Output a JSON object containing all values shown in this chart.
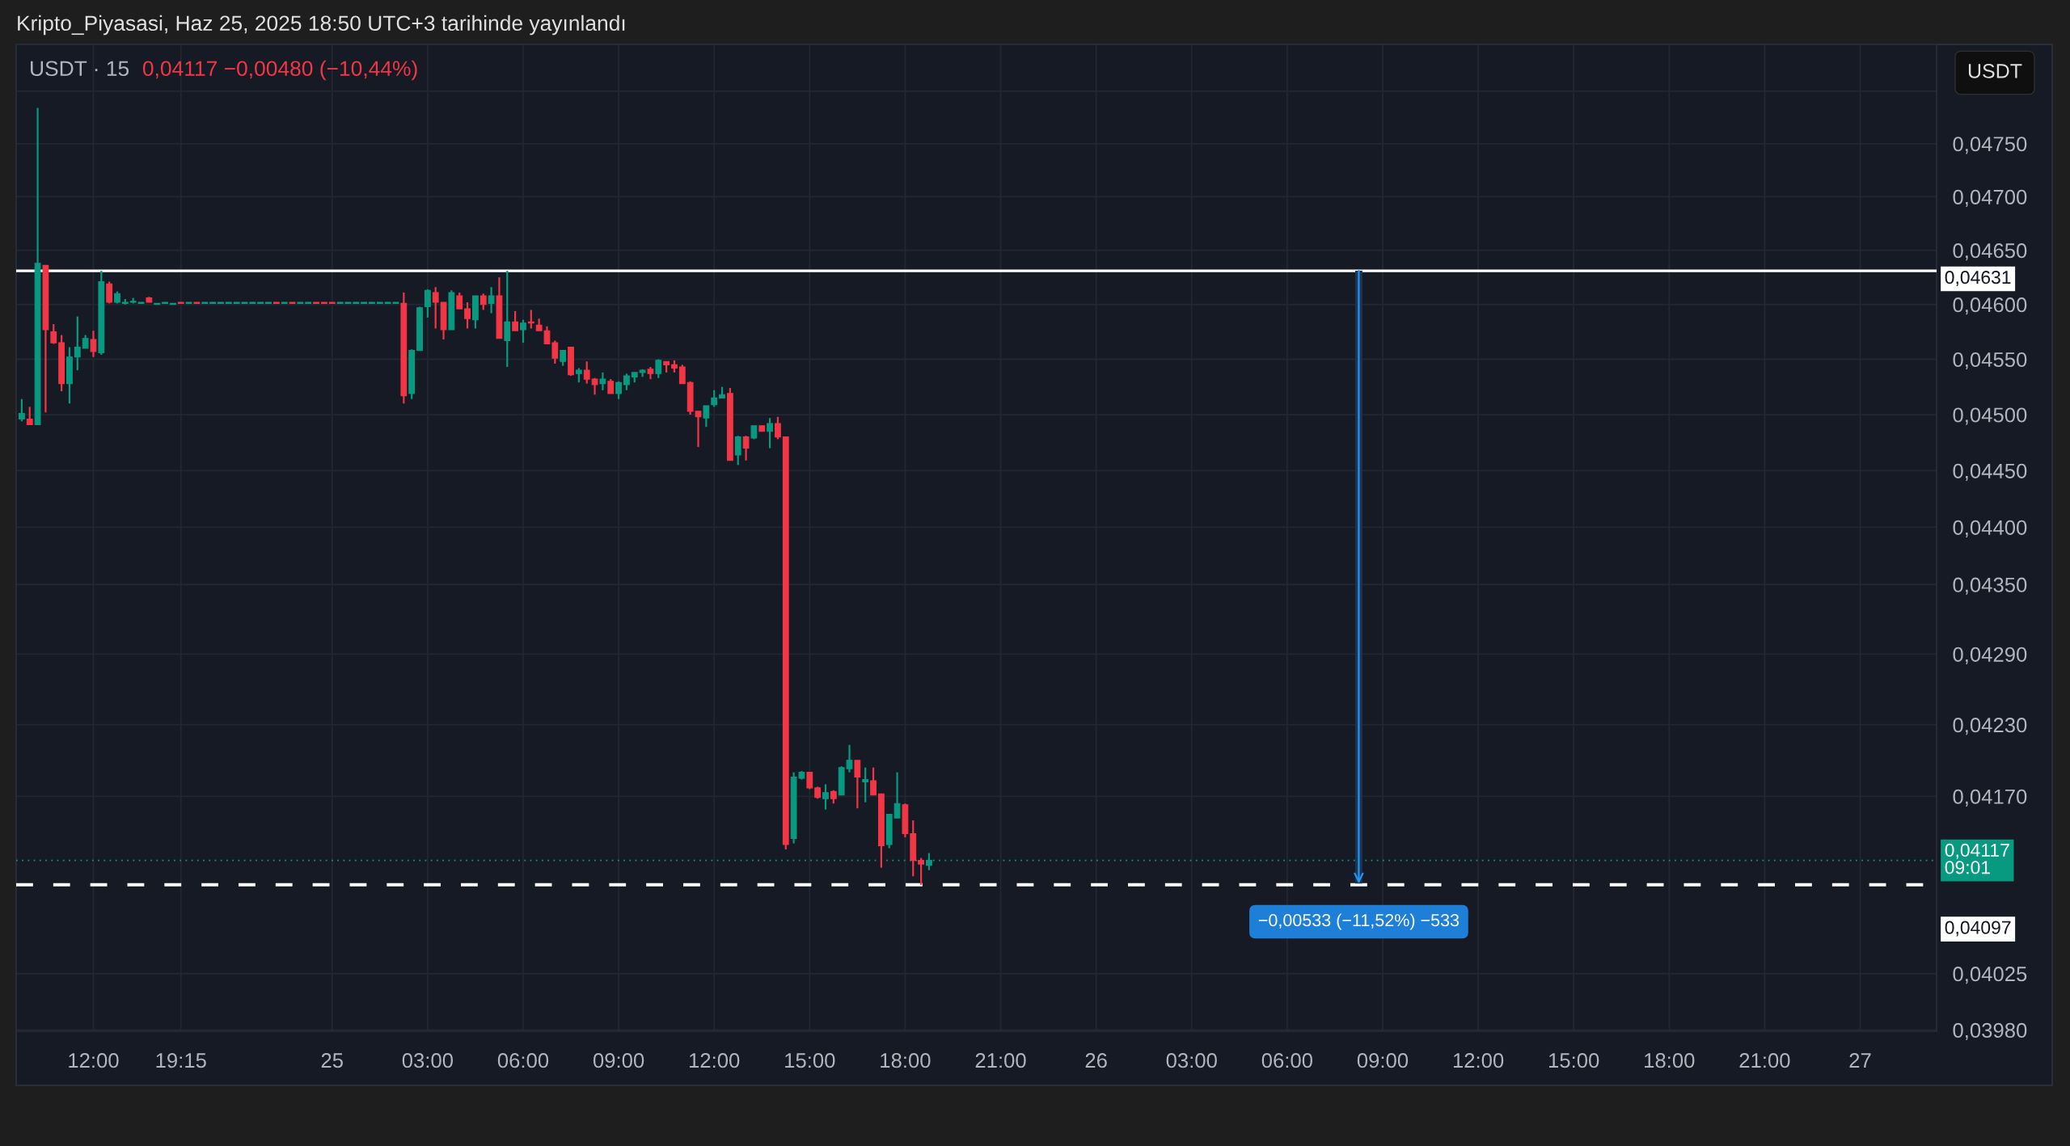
{
  "chart_data": {
    "type": "candlestick",
    "title": "Kripto_Piyasasi, Haz 25, 2025 18:50 UTC+3 tarihinde yayınlandı",
    "subtitle": "USDT · 15",
    "annotations": [
      "0,04117 −0,00480 (−10,44%)",
      "USDT"
    ],
    "categories": [
      null,
      null,
      null,
      null,
      null,
      null,
      null,
      null,
      null,
      "12:00",
      null,
      null,
      null,
      null,
      null,
      null,
      null,
      null,
      null,
      null,
      "19:15",
      null,
      null,
      null,
      null,
      null,
      null,
      null,
      null,
      null,
      null,
      null,
      null,
      null,
      null,
      null,
      null,
      null,
      null,
      "25",
      null,
      null,
      null,
      null,
      null,
      null,
      null,
      null,
      null,
      null,
      null,
      "03:00",
      null,
      null,
      null,
      null,
      null,
      null,
      null,
      null,
      null,
      null,
      null,
      "06:00",
      null,
      null,
      null,
      null,
      null,
      null,
      null,
      null,
      null,
      null,
      null,
      "09:00",
      null,
      null,
      null,
      null,
      null,
      null,
      null,
      null,
      null,
      null,
      null,
      "12:00",
      null,
      null,
      null,
      null,
      null,
      null,
      null,
      null,
      null,
      null,
      null,
      "15:00",
      null,
      null,
      null,
      null,
      null,
      null,
      null,
      null,
      null,
      null,
      null,
      "18:00",
      null,
      null,
      null,
      null,
      null,
      null,
      null,
      null,
      null,
      null,
      null,
      "21:00",
      null,
      null,
      null,
      null,
      null,
      null,
      null,
      null,
      null,
      null,
      null,
      "26",
      null,
      null,
      null,
      null,
      null,
      null,
      null,
      null,
      null,
      null,
      null,
      "03:00",
      null,
      null,
      null,
      null,
      null,
      null,
      null,
      null,
      null,
      null,
      null,
      "06:00",
      null,
      null,
      null,
      null,
      null,
      null,
      null,
      null,
      null,
      null,
      null,
      "09:00",
      null,
      null,
      null,
      null,
      null,
      null,
      null,
      null,
      null,
      null,
      null,
      "12:00",
      null,
      null,
      null,
      null,
      null,
      null,
      null,
      null,
      null,
      null,
      null,
      "15:00",
      null,
      null,
      null,
      null,
      null,
      null,
      null,
      null,
      null,
      null,
      null,
      "18:00",
      null,
      null,
      null,
      null,
      null,
      null,
      null,
      null,
      null,
      null,
      null,
      "21:00",
      null,
      null,
      null,
      null,
      null,
      null,
      null,
      null,
      null,
      null,
      null,
      "27",
      null,
      null,
      null,
      null,
      null,
      null,
      null,
      null,
      null
    ],
    "ohlc": [
      [
        0.04496,
        0.04514,
        0.04494,
        0.04501
      ],
      [
        0.04496,
        0.04507,
        0.04491,
        0.04491
      ],
      [
        0.04491,
        0.04784,
        0.04491,
        0.04638
      ],
      [
        0.04636,
        0.04636,
        0.04502,
        0.04577
      ],
      [
        0.04575,
        0.04582,
        0.04564,
        0.04565
      ],
      [
        0.04565,
        0.04572,
        0.04521,
        0.04528
      ],
      [
        0.04528,
        0.04561,
        0.0451,
        0.04552
      ],
      [
        0.04552,
        0.04589,
        0.0454,
        0.04561
      ],
      [
        0.0456,
        0.04572,
        0.0456,
        0.04569
      ],
      [
        0.04568,
        0.04576,
        0.04552,
        0.04557
      ],
      [
        0.04556,
        0.04631,
        0.04554,
        0.04621
      ],
      [
        0.04619,
        0.04621,
        0.04601,
        0.04602
      ],
      [
        0.04602,
        0.04612,
        0.04601,
        0.0461
      ],
      [
        0.04601,
        0.04605,
        0.046,
        0.04602
      ],
      [
        0.04602,
        0.04606,
        0.04601,
        0.04603
      ],
      [
        0.04601,
        0.04602,
        0.04601,
        0.04602
      ],
      [
        0.04606,
        0.04607,
        0.04602,
        0.04602
      ],
      [
        0.046,
        0.04601,
        0.046,
        0.04601
      ],
      [
        0.04601,
        0.04602,
        0.04601,
        0.04602
      ],
      [
        0.046,
        0.04601,
        0.046,
        0.04601
      ],
      [
        0.04602,
        0.04602,
        0.04601,
        0.04601
      ],
      [
        0.04601,
        0.04602,
        0.04601,
        0.04602
      ],
      [
        0.04602,
        0.04602,
        0.04601,
        0.04601
      ],
      [
        0.04601,
        0.04602,
        0.04601,
        0.04602
      ],
      [
        0.04601,
        0.04602,
        0.04601,
        0.04602
      ],
      [
        0.04601,
        0.04602,
        0.04601,
        0.04602
      ],
      [
        0.04601,
        0.04602,
        0.04601,
        0.04602
      ],
      [
        0.04601,
        0.04602,
        0.04601,
        0.04602
      ],
      [
        0.04601,
        0.04602,
        0.04601,
        0.04602
      ],
      [
        0.04601,
        0.04602,
        0.04601,
        0.04602
      ],
      [
        0.04601,
        0.04602,
        0.04601,
        0.04602
      ],
      [
        0.04601,
        0.04602,
        0.04601,
        0.04602
      ],
      [
        0.04602,
        0.04602,
        0.04601,
        0.04601
      ],
      [
        0.04601,
        0.04602,
        0.04601,
        0.04602
      ],
      [
        0.04602,
        0.04602,
        0.04601,
        0.04601
      ],
      [
        0.04601,
        0.04602,
        0.04601,
        0.04602
      ],
      [
        0.04601,
        0.04602,
        0.04601,
        0.04602
      ],
      [
        0.04602,
        0.04602,
        0.04601,
        0.04601
      ],
      [
        0.04602,
        0.04602,
        0.04601,
        0.04601
      ],
      [
        0.04602,
        0.04602,
        0.04601,
        0.04601
      ],
      [
        0.04601,
        0.04602,
        0.04601,
        0.04602
      ],
      [
        0.04601,
        0.04602,
        0.04601,
        0.04602
      ],
      [
        0.04601,
        0.04602,
        0.04601,
        0.04602
      ],
      [
        0.04601,
        0.04602,
        0.04601,
        0.04602
      ],
      [
        0.04601,
        0.04602,
        0.04601,
        0.04602
      ],
      [
        0.04601,
        0.04602,
        0.04601,
        0.04602
      ],
      [
        0.04601,
        0.04602,
        0.04601,
        0.04602
      ],
      [
        0.04601,
        0.04602,
        0.04601,
        0.04602
      ],
      [
        0.04601,
        0.04611,
        0.0451,
        0.04517
      ],
      [
        0.04519,
        0.04559,
        0.04514,
        0.04558
      ],
      [
        0.04558,
        0.04598,
        0.04558,
        0.04597
      ],
      [
        0.04598,
        0.04614,
        0.04588,
        0.04613
      ],
      [
        0.04611,
        0.04616,
        0.04578,
        0.04602
      ],
      [
        0.04602,
        0.04602,
        0.04568,
        0.04577
      ],
      [
        0.04577,
        0.04613,
        0.04577,
        0.04611
      ],
      [
        0.04608,
        0.04611,
        0.04596,
        0.04596
      ],
      [
        0.04596,
        0.04602,
        0.04578,
        0.04587
      ],
      [
        0.04586,
        0.04608,
        0.04578,
        0.04608
      ],
      [
        0.04608,
        0.0461,
        0.04595,
        0.046
      ],
      [
        0.04601,
        0.04616,
        0.04592,
        0.04608
      ],
      [
        0.04608,
        0.04625,
        0.04569,
        0.04569
      ],
      [
        0.04567,
        0.04631,
        0.04543,
        0.04584
      ],
      [
        0.04584,
        0.04594,
        0.04576,
        0.04576
      ],
      [
        0.04577,
        0.04586,
        0.04565,
        0.04583
      ],
      [
        0.04584,
        0.04595,
        0.04578,
        0.04583
      ],
      [
        0.04581,
        0.04587,
        0.04576,
        0.04576
      ],
      [
        0.04576,
        0.0458,
        0.04564,
        0.04564
      ],
      [
        0.04565,
        0.04567,
        0.04546,
        0.04551
      ],
      [
        0.04548,
        0.04558,
        0.04544,
        0.04558
      ],
      [
        0.04561,
        0.04561,
        0.04535,
        0.04536
      ],
      [
        0.04537,
        0.04542,
        0.04529,
        0.0454
      ],
      [
        0.0454,
        0.04548,
        0.04528,
        0.04532
      ],
      [
        0.04532,
        0.04533,
        0.04518,
        0.04527
      ],
      [
        0.04528,
        0.04538,
        0.04522,
        0.04532
      ],
      [
        0.0453,
        0.04532,
        0.04519,
        0.04519
      ],
      [
        0.04519,
        0.0453,
        0.04514,
        0.04529
      ],
      [
        0.04527,
        0.04537,
        0.04522,
        0.04535
      ],
      [
        0.04534,
        0.04538,
        0.04529,
        0.04538
      ],
      [
        0.04538,
        0.04541,
        0.04534,
        0.0454
      ],
      [
        0.04541,
        0.04543,
        0.04532,
        0.04537
      ],
      [
        0.04537,
        0.0455,
        0.04533,
        0.04549
      ],
      [
        0.04548,
        0.04548,
        0.04538,
        0.04545
      ],
      [
        0.04545,
        0.04549,
        0.04538,
        0.04542
      ],
      [
        0.04543,
        0.04545,
        0.04528,
        0.04528
      ],
      [
        0.04529,
        0.0453,
        0.045,
        0.04503
      ],
      [
        0.04503,
        0.04503,
        0.04471,
        0.04498
      ],
      [
        0.04497,
        0.04508,
        0.04489,
        0.04508
      ],
      [
        0.04509,
        0.04522,
        0.04507,
        0.04515
      ],
      [
        0.04515,
        0.04525,
        0.04515,
        0.04518
      ],
      [
        0.04519,
        0.04524,
        0.04459,
        0.04459
      ],
      [
        0.04464,
        0.04481,
        0.04455,
        0.0448
      ],
      [
        0.0448,
        0.04481,
        0.04459,
        0.0447
      ],
      [
        0.04479,
        0.0449,
        0.04478,
        0.0449
      ],
      [
        0.0449,
        0.0449,
        0.04485,
        0.04485
      ],
      [
        0.04485,
        0.04497,
        0.0447,
        0.04492
      ],
      [
        0.04492,
        0.04498,
        0.04478,
        0.0448
      ],
      [
        0.0448,
        0.0448,
        0.04126,
        0.0413
      ],
      [
        0.04135,
        0.0419,
        0.04131,
        0.04186
      ],
      [
        0.04185,
        0.04191,
        0.04184,
        0.0419
      ],
      [
        0.0419,
        0.0419,
        0.04176,
        0.04177
      ],
      [
        0.04177,
        0.04178,
        0.04168,
        0.04169
      ],
      [
        0.04168,
        0.0418,
        0.04159,
        0.04173
      ],
      [
        0.04174,
        0.04175,
        0.04164,
        0.04168
      ],
      [
        0.04171,
        0.04195,
        0.04171,
        0.04194
      ],
      [
        0.04193,
        0.04213,
        0.0419,
        0.042
      ],
      [
        0.042,
        0.042,
        0.0416,
        0.04186
      ],
      [
        0.04182,
        0.04194,
        0.04165,
        0.04184
      ],
      [
        0.04183,
        0.04194,
        0.04171,
        0.04171
      ],
      [
        0.04172,
        0.04172,
        0.04111,
        0.04129
      ],
      [
        0.0413,
        0.04155,
        0.04127,
        0.04155
      ],
      [
        0.04152,
        0.0419,
        0.04152,
        0.04164
      ],
      [
        0.04163,
        0.04164,
        0.04136,
        0.04139
      ],
      [
        0.04139,
        0.0415,
        0.04104,
        0.04117
      ],
      [
        0.04117,
        0.04119,
        0.04097,
        0.04114
      ],
      [
        0.04113,
        0.04123,
        0.04109,
        0.04117
      ],
      null,
      null,
      null,
      null,
      null,
      null,
      null,
      null,
      null,
      null,
      null,
      null,
      null,
      null,
      null,
      null,
      null,
      null,
      null,
      null,
      null,
      null,
      null,
      null,
      null,
      null,
      null,
      null,
      null,
      null,
      null,
      null,
      null,
      null,
      null,
      null,
      null,
      null,
      null,
      null,
      null,
      null,
      null,
      null,
      null,
      null,
      null,
      null,
      null,
      null,
      null,
      null,
      null,
      null,
      null,
      null,
      null,
      null,
      null,
      null,
      null,
      null,
      null,
      null,
      null,
      null,
      null,
      null,
      null,
      null,
      null,
      null,
      null,
      null,
      null,
      null,
      null,
      null,
      null,
      null,
      null,
      null,
      null,
      null,
      null,
      null,
      null,
      null,
      null,
      null,
      null,
      null,
      null,
      null,
      null,
      null,
      null,
      null,
      null,
      null,
      null,
      null,
      null,
      null,
      null,
      null,
      null,
      null,
      null,
      null,
      null,
      null,
      null,
      null,
      null,
      null,
      null,
      null,
      null,
      null,
      null,
      null,
      null,
      null,
      null,
      null
    ],
    "colors": [
      "#089981",
      "#f23645",
      "#089981",
      "#f23645",
      "#f23645",
      "#f23645",
      "#089981",
      "#089981",
      "#089981",
      "#f23645",
      "#089981",
      "#f23645",
      "#089981",
      "#089981",
      "#089981",
      "#089981",
      "#f23645",
      "#089981",
      "#089981",
      "#089981",
      "#f23645",
      "#089981",
      "#f23645",
      "#089981",
      "#089981",
      "#089981",
      "#089981",
      "#089981",
      "#089981",
      "#089981",
      "#089981",
      "#089981",
      "#f23645",
      "#089981",
      "#f23645",
      "#089981",
      "#089981",
      "#f23645",
      "#f23645",
      "#f23645",
      "#089981",
      "#089981",
      "#089981",
      "#089981",
      "#089981",
      "#089981",
      "#089981",
      "#089981",
      "#f23645",
      "#089981",
      "#089981",
      "#089981",
      "#f23645",
      "#f23645",
      "#089981",
      "#f23645",
      "#f23645",
      "#089981",
      "#f23645",
      "#089981",
      "#f23645",
      "#089981",
      "#f23645",
      "#089981",
      "#f23645",
      "#f23645",
      "#f23645",
      "#f23645",
      "#089981",
      "#f23645",
      "#089981",
      "#f23645",
      "#f23645",
      "#089981",
      "#f23645",
      "#089981",
      "#089981",
      "#089981",
      "#089981",
      "#f23645",
      "#089981",
      "#f23645",
      "#f23645",
      "#f23645",
      "#f23645",
      "#f23645",
      "#089981",
      "#089981",
      "#089981",
      "#f23645",
      "#089981",
      "#f23645",
      "#089981",
      "#f23645",
      "#089981",
      "#f23645",
      "#f23645",
      "#089981",
      "#089981",
      "#f23645",
      "#f23645",
      "#089981",
      "#f23645",
      "#089981",
      "#089981",
      "#f23645",
      "#089981",
      "#f23645",
      "#f23645",
      "#089981",
      "#089981",
      "#f23645",
      "#f23645",
      "#f23645",
      "#089981",
      null,
      null,
      null,
      null,
      null,
      null,
      null,
      null,
      null,
      null,
      null,
      null,
      null,
      null,
      null,
      null,
      null,
      null,
      null,
      null,
      null,
      null,
      null,
      null,
      null,
      null,
      null,
      null,
      null,
      null,
      null,
      null,
      null,
      null,
      null,
      null,
      null,
      null,
      null,
      null,
      null,
      null,
      null,
      null,
      null,
      null,
      null,
      null,
      null,
      null,
      null,
      null,
      null,
      null,
      null,
      null,
      null,
      null,
      null,
      null,
      null,
      null,
      null,
      null,
      null,
      null,
      null,
      null,
      null,
      null,
      null,
      null,
      null,
      null,
      null,
      null,
      null,
      null,
      null,
      null,
      null,
      null,
      null,
      null,
      null,
      null,
      null,
      null,
      null,
      null,
      null,
      null,
      null,
      null,
      null,
      null,
      null,
      null,
      null,
      null,
      null,
      null,
      null,
      null,
      null,
      null,
      null,
      null,
      null,
      null,
      null,
      null,
      null,
      null,
      null,
      null,
      null,
      null,
      null,
      null,
      null,
      null,
      null,
      null,
      null,
      null
    ],
    "series": [
      {
        "type": "bar",
        "color": "#1b3552",
        "values": [
          null,
          null,
          null,
          null,
          null,
          null,
          null,
          null,
          null,
          null,
          null,
          null,
          null,
          null,
          null,
          null,
          null,
          null,
          null,
          null,
          null,
          null,
          null,
          null,
          null,
          null,
          null,
          null,
          null,
          null,
          null,
          null,
          null,
          null,
          null,
          null,
          null,
          null,
          null,
          null,
          null,
          null,
          null,
          null,
          null,
          null,
          null,
          null,
          null,
          null,
          null,
          null,
          null,
          null,
          null,
          null,
          null,
          null,
          null,
          null,
          null,
          null,
          null,
          null,
          null,
          null,
          null,
          null,
          null,
          null,
          null,
          null,
          null,
          null,
          null,
          null,
          null,
          null,
          null,
          null,
          null,
          null,
          null,
          null,
          null,
          null,
          null,
          null,
          null,
          null,
          null,
          null,
          null,
          null,
          null,
          null,
          null,
          null,
          null,
          null,
          null,
          null,
          null,
          null,
          null,
          null,
          null,
          null,
          null,
          null,
          null,
          null,
          null,
          null,
          null,
          null,
          null,
          null,
          null,
          null,
          null,
          null,
          null,
          null,
          null,
          null,
          null,
          null,
          null,
          null,
          null,
          null,
          null,
          null,
          null,
          null,
          null,
          null,
          null,
          null,
          null,
          null,
          null,
          null,
          null,
          null,
          null,
          null,
          null,
          null,
          null,
          null,
          null,
          null,
          null,
          null,
          null,
          null,
          null,
          null,
          null,
          null,
          null,
          null,
          null,
          null,
          null,
          null,
          -0.00533,
          null,
          null,
          null,
          null,
          null,
          null,
          null,
          null,
          null,
          null,
          null,
          null,
          null,
          null,
          null,
          null,
          null,
          null,
          null,
          null,
          null,
          null,
          null,
          null,
          null,
          null,
          null,
          null,
          null,
          null,
          null,
          null,
          null,
          null,
          null,
          null,
          null,
          null,
          null,
          null,
          null,
          null,
          null,
          null,
          null,
          null,
          null,
          null,
          null,
          null,
          null,
          null,
          null,
          null,
          null,
          null,
          null,
          null,
          null,
          null,
          null,
          null,
          null,
          null,
          null,
          null,
          null,
          null,
          null,
          null,
          null,
          null
        ],
        "base": [
          null,
          null,
          null,
          null,
          null,
          null,
          null,
          null,
          null,
          null,
          null,
          null,
          null,
          null,
          null,
          null,
          null,
          null,
          null,
          null,
          null,
          null,
          null,
          null,
          null,
          null,
          null,
          null,
          null,
          null,
          null,
          null,
          null,
          null,
          null,
          null,
          null,
          null,
          null,
          null,
          null,
          null,
          null,
          null,
          null,
          null,
          null,
          null,
          null,
          null,
          null,
          null,
          null,
          null,
          null,
          null,
          null,
          null,
          null,
          null,
          null,
          null,
          null,
          null,
          null,
          null,
          null,
          null,
          null,
          null,
          null,
          null,
          null,
          null,
          null,
          null,
          null,
          null,
          null,
          null,
          null,
          null,
          null,
          null,
          null,
          null,
          null,
          null,
          null,
          null,
          null,
          null,
          null,
          null,
          null,
          null,
          null,
          null,
          null,
          null,
          null,
          null,
          null,
          null,
          null,
          null,
          null,
          null,
          null,
          null,
          null,
          null,
          null,
          null,
          null,
          null,
          null,
          null,
          null,
          null,
          null,
          null,
          null,
          null,
          null,
          null,
          null,
          null,
          null,
          null,
          null,
          null,
          null,
          null,
          null,
          null,
          null,
          null,
          null,
          null,
          null,
          null,
          null,
          null,
          null,
          null,
          null,
          null,
          null,
          null,
          null,
          null,
          null,
          null,
          null,
          null,
          null,
          null,
          null,
          null,
          null,
          null,
          null,
          null,
          null,
          null,
          null,
          null,
          0.04631,
          null,
          null,
          null,
          null,
          null,
          null,
          null,
          null,
          null,
          null,
          null,
          null,
          null,
          null,
          null,
          null,
          null,
          null,
          null,
          null,
          null,
          null,
          null,
          null,
          null,
          null,
          null,
          null,
          null,
          null,
          null,
          null,
          null,
          null,
          null,
          null,
          null,
          null,
          null,
          null,
          null,
          null,
          null,
          null,
          null,
          null,
          null,
          null,
          null,
          null,
          null,
          null,
          null,
          null,
          null,
          null,
          null,
          null,
          null,
          null,
          null,
          null,
          null,
          null,
          null,
          null,
          null,
          null,
          null,
          null,
          null,
          null
        ],
        "value_labels": [
          null,
          null,
          null,
          null,
          null,
          null,
          null,
          null,
          null,
          null,
          null,
          null,
          null,
          null,
          null,
          null,
          null,
          null,
          null,
          null,
          null,
          null,
          null,
          null,
          null,
          null,
          null,
          null,
          null,
          null,
          null,
          null,
          null,
          null,
          null,
          null,
          null,
          null,
          null,
          null,
          null,
          null,
          null,
          null,
          null,
          null,
          null,
          null,
          null,
          null,
          null,
          null,
          null,
          null,
          null,
          null,
          null,
          null,
          null,
          null,
          null,
          null,
          null,
          null,
          null,
          null,
          null,
          null,
          null,
          null,
          null,
          null,
          null,
          null,
          null,
          null,
          null,
          null,
          null,
          null,
          null,
          null,
          null,
          null,
          null,
          null,
          null,
          null,
          null,
          null,
          null,
          null,
          null,
          null,
          null,
          null,
          null,
          null,
          null,
          null,
          null,
          null,
          null,
          null,
          null,
          null,
          null,
          null,
          null,
          null,
          null,
          null,
          null,
          null,
          null,
          null,
          null,
          null,
          null,
          null,
          null,
          null,
          null,
          null,
          null,
          null,
          null,
          null,
          null,
          null,
          null,
          null,
          null,
          null,
          null,
          null,
          null,
          null,
          null,
          null,
          null,
          null,
          null,
          null,
          null,
          null,
          null,
          null,
          null,
          null,
          null,
          null,
          null,
          null,
          null,
          null,
          null,
          null,
          null,
          null,
          null,
          null,
          null,
          null,
          null,
          null,
          null,
          null,
          "−0,00533 (−11,52%) −533",
          null,
          null,
          null,
          null,
          null,
          null,
          null,
          null,
          null,
          null,
          null,
          null,
          null,
          null,
          null,
          null,
          null,
          null,
          null,
          null,
          null,
          null,
          null,
          null,
          null,
          null,
          null,
          null,
          null,
          null,
          null,
          null,
          null,
          null,
          null,
          null,
          null,
          null,
          null,
          null,
          null,
          null,
          null,
          null,
          null,
          null,
          null,
          null,
          null,
          null,
          null,
          null,
          null,
          null,
          null,
          null,
          null,
          null,
          null,
          null,
          null,
          null,
          null,
          null,
          null,
          null,
          null,
          null,
          null,
          null,
          null,
          null
        ]
      }
    ],
    "ref_lines": [
      {
        "axis": "y",
        "value": 0.04631,
        "label": "0,04631",
        "color": "#ffffff",
        "line_style": "solid"
      },
      {
        "axis": "y",
        "value": 0.04117,
        "label": "0,04117\n09:01",
        "color": "#089981",
        "line_style": "dotted"
      },
      {
        "axis": "y",
        "value": 0.04097,
        "label": "0,04097",
        "color": "#ffffff",
        "line_style": "dashed"
      }
    ],
    "log": true,
    "ylim": [
      0.03979,
      0.04845
    ],
    "yticks": [
      {
        "value": 0.048,
        "label": null
      },
      {
        "value": 0.0475,
        "label": "0,04750"
      },
      {
        "value": 0.047,
        "label": "0,04700"
      },
      {
        "value": 0.0465,
        "label": "0,04650"
      },
      {
        "value": 0.046,
        "label": "0,04600"
      },
      {
        "value": 0.0455,
        "label": "0,04550"
      },
      {
        "value": 0.045,
        "label": "0,04500"
      },
      {
        "value": 0.0445,
        "label": "0,04450"
      },
      {
        "value": 0.044,
        "label": "0,04400"
      },
      {
        "value": 0.0435,
        "label": "0,04350"
      },
      {
        "value": 0.0429,
        "label": "0,04290"
      },
      {
        "value": 0.0423,
        "label": "0,04230"
      },
      {
        "value": 0.0417,
        "label": "0,04170"
      },
      {
        "value": 0.04025,
        "label": "0,04025"
      },
      {
        "value": 0.0398,
        "label": "0,03980"
      }
    ],
    "grid": true
  }
}
